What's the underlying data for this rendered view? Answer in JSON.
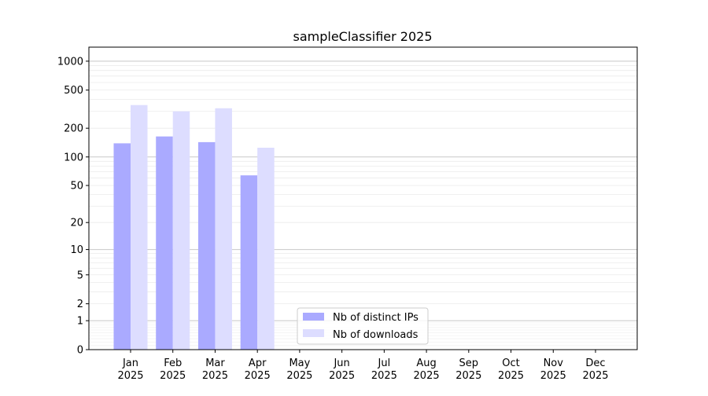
{
  "chart_data": {
    "type": "bar",
    "title": "sampleClassifier 2025",
    "xlabel": "",
    "ylabel": "",
    "yscale": "symlog (log10(1+y))",
    "ylim": [
      0,
      1400
    ],
    "yticks": [
      0,
      1,
      2,
      5,
      10,
      20,
      50,
      100,
      200,
      500,
      1000
    ],
    "grid": true,
    "legend_position": "bottom-center",
    "categories": [
      "Jan\n2025",
      "Feb\n2025",
      "Mar\n2025",
      "Apr\n2025",
      "May\n2025",
      "Jun\n2025",
      "Jul\n2025",
      "Aug\n2025",
      "Sep\n2025",
      "Oct\n2025",
      "Nov\n2025",
      "Dec\n2025"
    ],
    "series": [
      {
        "name": "Nb of distinct IPs",
        "color": "#aaaaff",
        "values": [
          139,
          164,
          143,
          64,
          null,
          null,
          null,
          null,
          null,
          null,
          null,
          null
        ]
      },
      {
        "name": "Nb of downloads",
        "color": "#ddddff",
        "values": [
          349,
          300,
          323,
          125,
          null,
          null,
          null,
          null,
          null,
          null,
          null,
          null
        ]
      }
    ]
  }
}
